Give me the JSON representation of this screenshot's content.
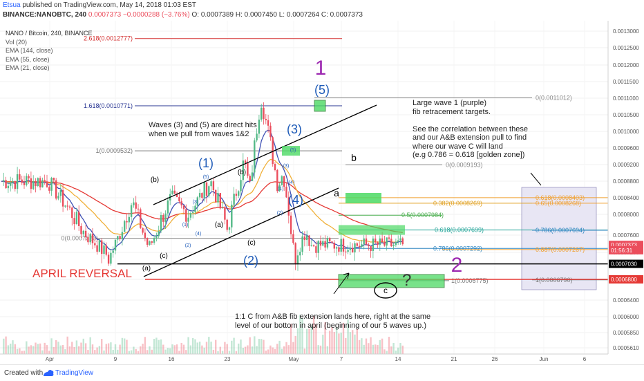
{
  "header": {
    "author": "Etsua",
    "published": "published on TradingView.com, May 14, 2018 01:03 EST",
    "symbol": "BINANCE:NANOBTC, 240",
    "last": "0.0007373",
    "change": "−0.0000288 (−3.76%)",
    "open": "O: 0.0007389",
    "high": "H: 0.0007450",
    "low": "L: 0.0007264",
    "close": "C: 0.0007373"
  },
  "legend": {
    "title": "NANO / Bitcoin, 240, BINANCE",
    "items": [
      "Vol (20)",
      "EMA (144, close)",
      "EMA (55, close)",
      "EMA (21, close)"
    ]
  },
  "footer": {
    "created": "Created with",
    "brand": "TradingView"
  },
  "colors": {
    "up": "#53b987",
    "down": "#eb4d5c",
    "ema144": "#e53935",
    "ema55": "#f0b03a",
    "ema21": "#3f51b5",
    "fib_box": "#4cd964",
    "purple": "#9c27b0",
    "wave_blue": "#1e5bb8"
  },
  "annotations": {
    "top_right": "Large wave 1 (purple)\nfib retracement targets.\n\nSee the correlation between these\nand our A&B extension pull to find\nwhere our wave C will land\n(e.g 0.786 = 0.618 [golden zone])",
    "waves_hits": "Waves (3) and (5) are direct hits\nwhen we pull from waves 1&2",
    "bottom": "1:1 C from A&B fib extension lands here, right at the same\nlevel of our bottom in april (beginning of our 5 waves up.)",
    "april": "APRIL REVERSAL",
    "question": "?"
  },
  "chart_data": {
    "type": "candlestick",
    "title": "NANO / Bitcoin, 240, BINANCE",
    "x_ticks": [
      "Apr",
      "9",
      "16",
      "23",
      "May",
      "7",
      "14",
      "21",
      "26",
      "Jun",
      "6"
    ],
    "y_ticks": [
      "0.0013000",
      "0.0012500",
      "0.0012000",
      "0.0011500",
      "0.0011000",
      "0.0010500",
      "0.0010000",
      "0.0009600",
      "0.0009200",
      "0.0008800",
      "0.0008400",
      "0.0008000",
      "0.0007600",
      "0.0007200",
      "0.0006800",
      "0.0006400",
      "0.0006000",
      "0.0005850",
      "0.0005610"
    ],
    "price_badges": [
      {
        "label": "0.0007373",
        "value": 0.0007373,
        "bg": "#eb4d5c",
        "fg": "#ffffff"
      },
      {
        "label": "01:56:31",
        "value": 0.000725,
        "bg": "#eb4d5c",
        "fg": "#ffffff"
      },
      {
        "label": "0.0007030",
        "value": 0.000703,
        "bg": "#000000",
        "fg": "#ffffff"
      },
      {
        "label": "0.0006800",
        "value": 0.00068,
        "bg": "#e53935",
        "fg": "#ffffff"
      }
    ],
    "levels": [
      {
        "label": "2.618(0.0012777)",
        "value": 0.0012777,
        "color": "#d32f2f"
      },
      {
        "label": "1.618(0.0010771)",
        "value": 0.0010771,
        "color": "#283593"
      },
      {
        "label": "1(0.0009532)",
        "value": 0.0009532,
        "color": "#777777"
      },
      {
        "label": "0(0.0011012)",
        "value": 0.0011012,
        "color": "#888888"
      },
      {
        "label": "0(0.0009193)",
        "value": 0.0009193,
        "color": "#888888"
      },
      {
        "label": "0.618(0.0008403)",
        "value": 0.0008403,
        "color": "#f0a030"
      },
      {
        "label": "0.382(0.0008269)",
        "value": 0.0008269,
        "color": "#e0a020"
      },
      {
        "label": "0.65(0.0008268)",
        "value": 0.0008268,
        "color": "#f0a030"
      },
      {
        "label": "0.5(0.0007984)",
        "value": 0.0007984,
        "color": "#4caf50"
      },
      {
        "label": "0.618(0.0007699)",
        "value": 0.0007699,
        "color": "#26a69a"
      },
      {
        "label": "0.786(0.0007694)",
        "value": 0.0007694,
        "color": "#2e86c1"
      },
      {
        "label": "0(0.0007526)",
        "value": 0.0007526,
        "color": "#888888"
      },
      {
        "label": "0.786(0.0007292)",
        "value": 0.0007292,
        "color": "#2e86c1"
      },
      {
        "label": "0.887(0.0007267)",
        "value": 0.0007267,
        "color": "#f0a030"
      },
      {
        "label": "1(0.0006775)",
        "value": 0.0006775,
        "color": "#777777"
      },
      {
        "label": "1(0.0006790)",
        "value": 0.000679,
        "color": "#777777"
      }
    ],
    "wave_labels": [
      "1",
      "2",
      "(1)",
      "(2)",
      "(3)",
      "(4)",
      "(5)",
      "(a)",
      "(b)",
      "(c)",
      "a",
      "b",
      "c",
      "1",
      "2",
      "3",
      "4",
      "5"
    ],
    "approx_path": [
      {
        "date": "2018-03-28",
        "price": 0.00088
      },
      {
        "date": "2018-04-03",
        "price": 0.00077
      },
      {
        "date": "2018-04-08",
        "price": 0.00071
      },
      {
        "date": "2018-04-12",
        "price": 0.00083
      },
      {
        "date": "2018-04-15",
        "price": 0.00073
      },
      {
        "date": "2018-04-19",
        "price": 0.00084
      },
      {
        "date": "2018-04-22",
        "price": 0.0008
      },
      {
        "date": "2018-04-26",
        "price": 0.00088
      },
      {
        "date": "2018-04-29",
        "price": 0.00077
      },
      {
        "date": "2018-05-02",
        "price": 0.00093
      },
      {
        "date": "2018-05-03",
        "price": 0.00086
      },
      {
        "date": "2018-05-05",
        "price": 0.0011
      },
      {
        "date": "2018-05-08",
        "price": 0.00087
      },
      {
        "date": "2018-05-09",
        "price": 0.0009
      },
      {
        "date": "2018-05-11",
        "price": 0.00071
      },
      {
        "date": "2018-05-13",
        "price": 0.00077
      },
      {
        "date": "2018-05-14",
        "price": 0.0007373
      }
    ]
  }
}
